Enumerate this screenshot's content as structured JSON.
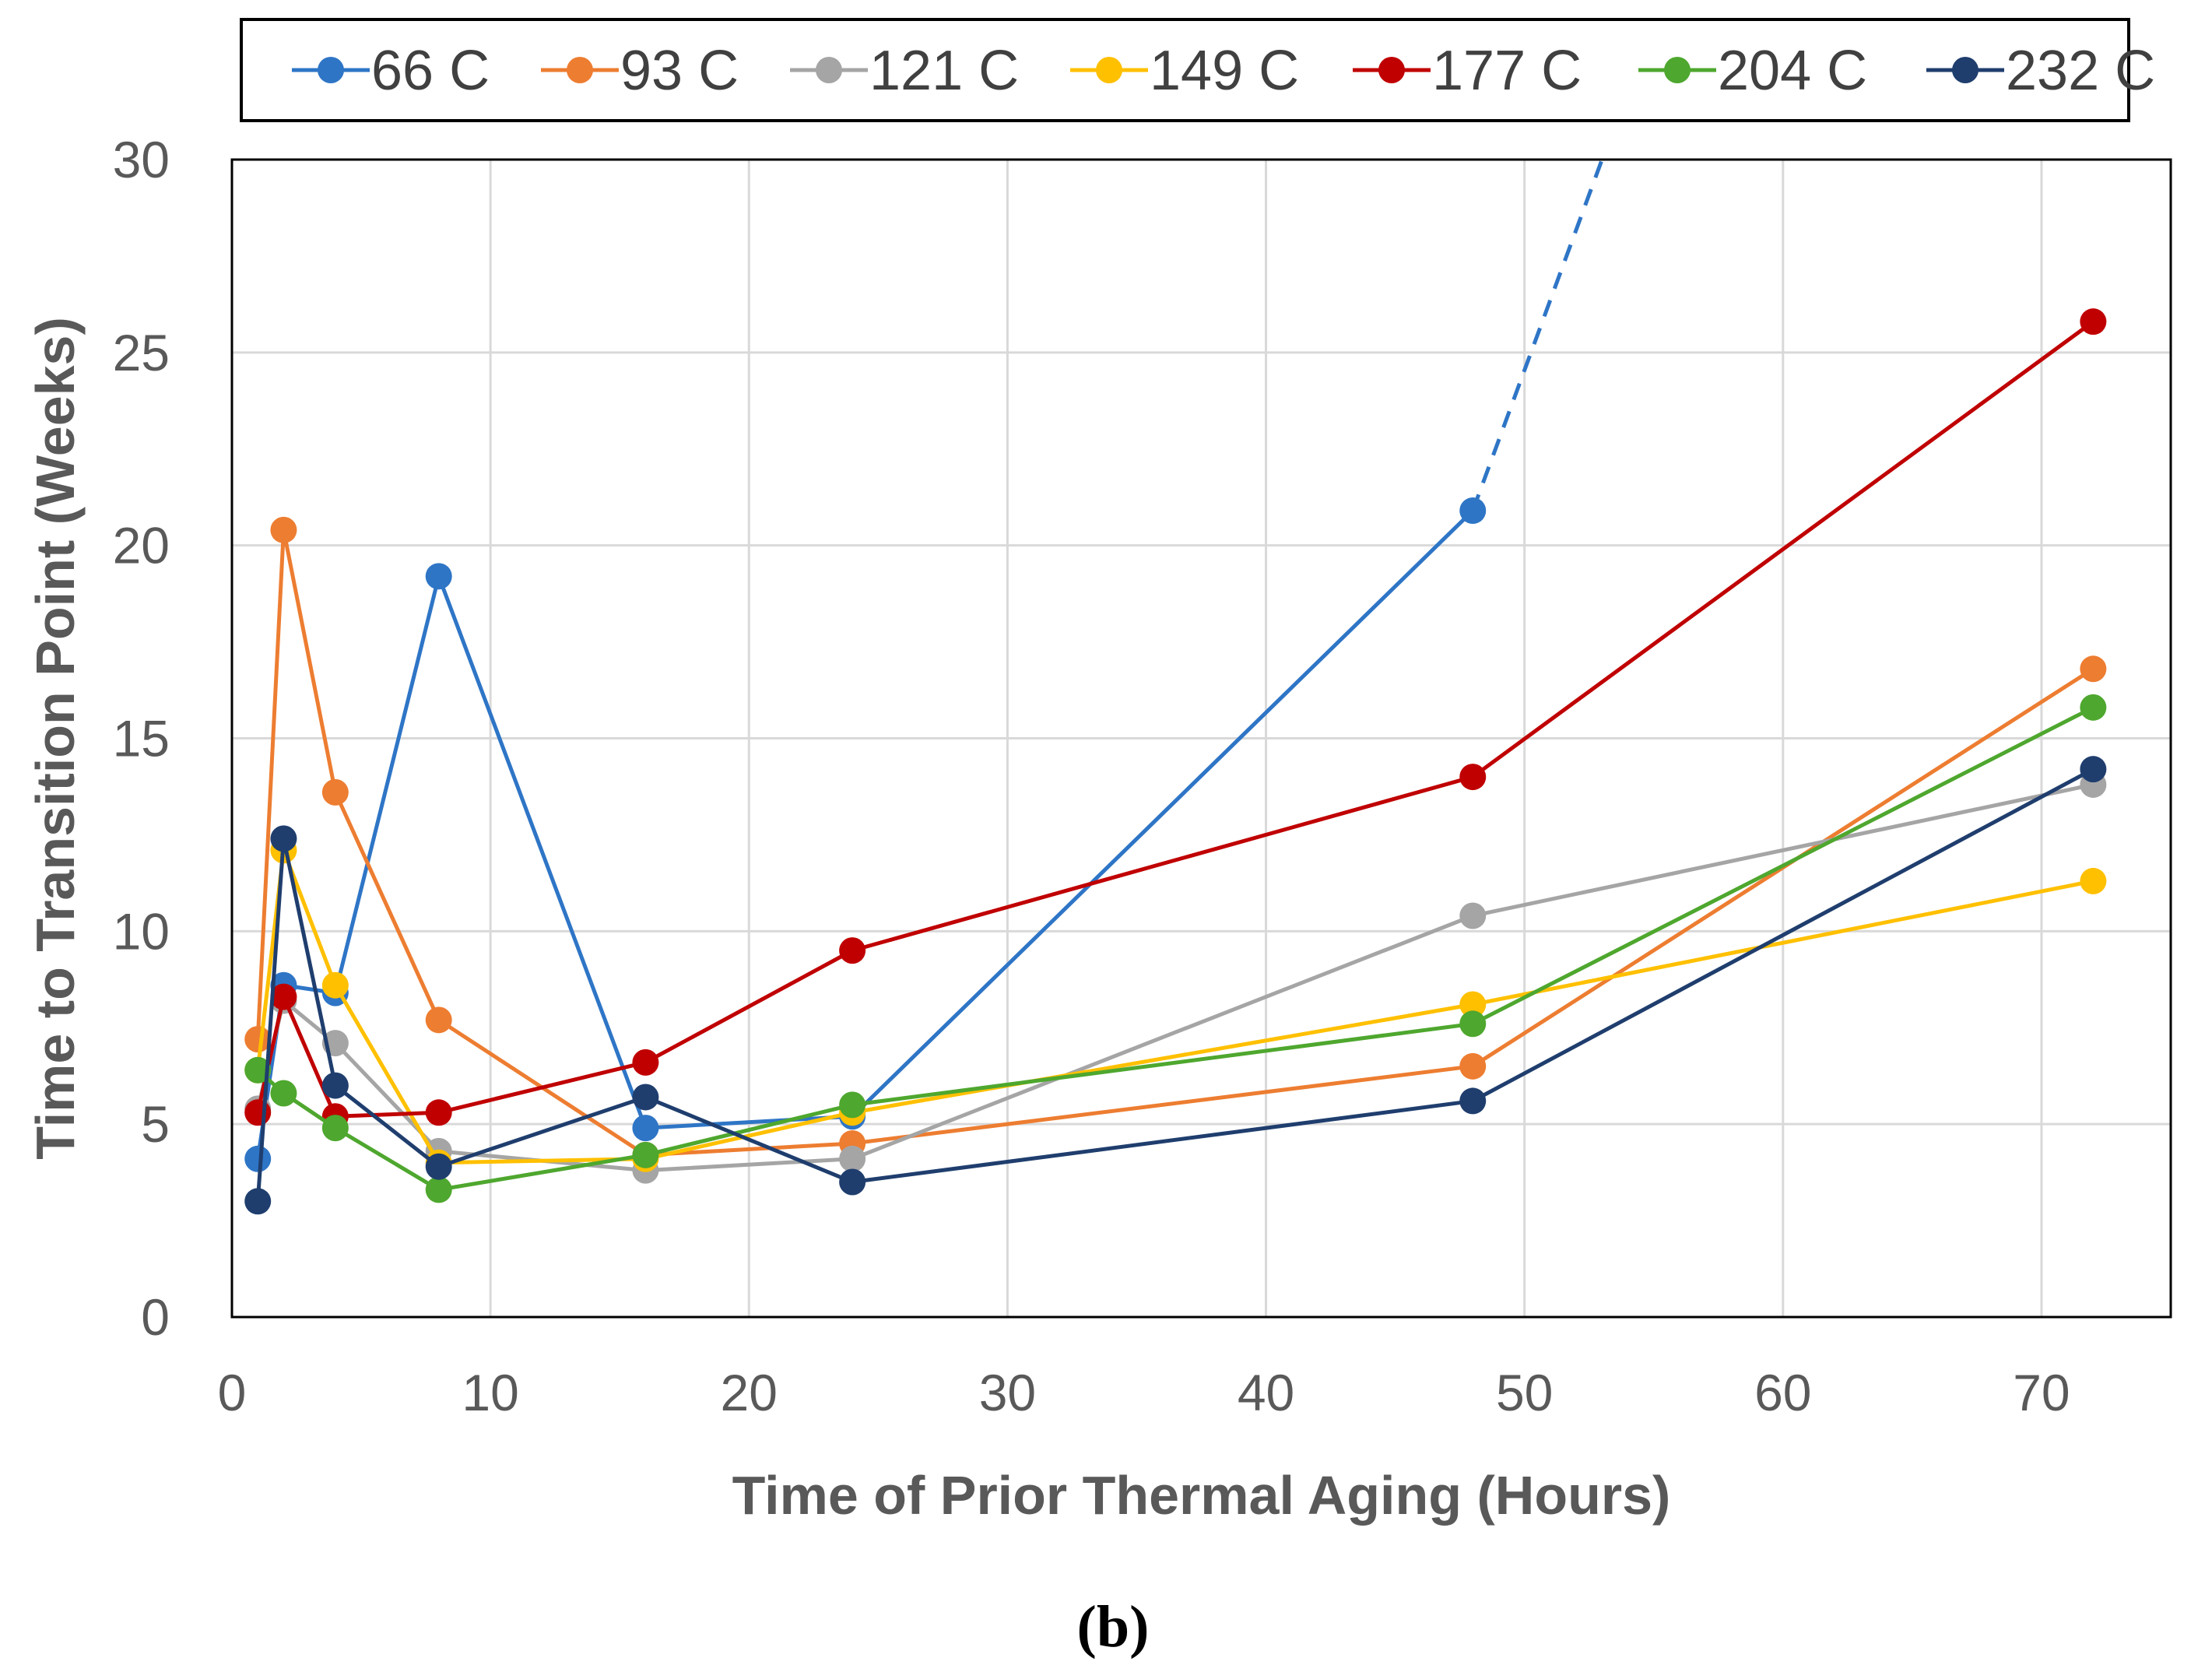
{
  "chart_data": {
    "type": "line",
    "title": "",
    "xlabel": "Time of Prior Thermal Aging (Hours)",
    "ylabel": "Time to Transition Point (Weeks)",
    "xlim": [
      0,
      75
    ],
    "ylim": [
      0,
      30
    ],
    "x_ticks": [
      0,
      10,
      20,
      30,
      40,
      50,
      60,
      70
    ],
    "y_ticks": [
      0,
      5,
      10,
      15,
      20,
      25,
      30
    ],
    "grid": true,
    "legend_position": "top",
    "caption": "(b)",
    "series": [
      {
        "name": "66 C",
        "color": "#2e75c6",
        "x": [
          1,
          2,
          4,
          8,
          16,
          24,
          48
        ],
        "y": [
          4.1,
          8.6,
          8.4,
          19.2,
          4.9,
          5.2,
          20.9
        ],
        "extrapolation": {
          "x": [
            48,
            53
          ],
          "y": [
            20.9,
            30
          ]
        }
      },
      {
        "name": "93 C",
        "color": "#ed7d31",
        "x": [
          1,
          2,
          4,
          8,
          16,
          24,
          48,
          72
        ],
        "y": [
          7.2,
          20.4,
          13.6,
          7.7,
          4.2,
          4.5,
          6.5,
          16.8
        ]
      },
      {
        "name": "121 C",
        "color": "#a5a5a5",
        "x": [
          1,
          2,
          4,
          8,
          16,
          24,
          48,
          72
        ],
        "y": [
          5.4,
          8.2,
          7.1,
          4.3,
          3.8,
          4.1,
          10.4,
          13.8
        ]
      },
      {
        "name": "149 C",
        "color": "#ffc000",
        "x": [
          1,
          2,
          4,
          8,
          16,
          24,
          48,
          72
        ],
        "y": [
          6.4,
          12.1,
          8.6,
          4.0,
          4.1,
          5.3,
          8.1,
          11.3
        ]
      },
      {
        "name": "177 C",
        "color": "#c00000",
        "x": [
          1,
          2,
          4,
          8,
          16,
          24,
          48,
          72
        ],
        "y": [
          5.3,
          8.3,
          5.2,
          5.3,
          6.6,
          9.5,
          14.0,
          25.8
        ]
      },
      {
        "name": "204 C",
        "color": "#4ea72e",
        "x": [
          1,
          2,
          4,
          8,
          16,
          24,
          48,
          72
        ],
        "y": [
          6.4,
          5.8,
          4.9,
          3.3,
          4.2,
          5.5,
          7.6,
          15.8
        ]
      },
      {
        "name": "232 C",
        "color": "#1f3e6e",
        "x": [
          1,
          2,
          4,
          8,
          16,
          24,
          48,
          72
        ],
        "y": [
          3.0,
          12.4,
          6.0,
          3.9,
          5.7,
          3.5,
          5.6,
          14.2
        ]
      }
    ]
  }
}
